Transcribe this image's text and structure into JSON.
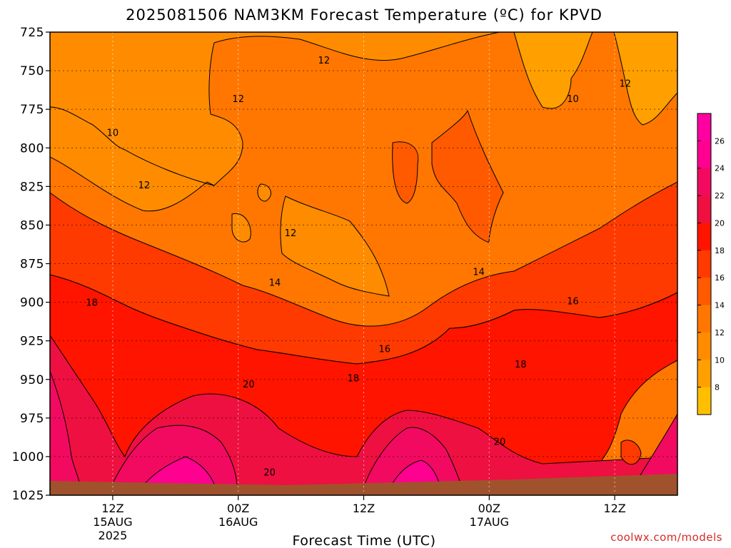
{
  "chart_data": {
    "type": "heatmap",
    "title": "2025081506 NAM3KM Forecast Temperature (ºC) for KPVD",
    "xlabel": "Forecast Time (UTC)",
    "ylabel": "",
    "y_axis_values": [
      725,
      750,
      775,
      800,
      825,
      850,
      875,
      900,
      925,
      950,
      975,
      1000,
      1025
    ],
    "y_tick_labels": [
      "725",
      "750",
      "775",
      "800",
      "825",
      "850",
      "875",
      "900",
      "925",
      "950",
      "975",
      "1000",
      "1025"
    ],
    "y_scale": "pressure (inverted, log-like)",
    "x_range": [
      0,
      60
    ],
    "x_ticks": [
      {
        "x": 6,
        "line1": "12Z",
        "line2": "15AUG",
        "line3": "2025"
      },
      {
        "x": 18,
        "line1": "00Z",
        "line2": "16AUG",
        "line3": ""
      },
      {
        "x": 30,
        "line1": "12Z",
        "line2": "",
        "line3": ""
      },
      {
        "x": 42,
        "line1": "00Z",
        "line2": "17AUG",
        "line3": ""
      },
      {
        "x": 54,
        "line1": "12Z",
        "line2": "",
        "line3": ""
      }
    ],
    "colorbar": {
      "labels": [
        "8",
        "10",
        "12",
        "14",
        "16",
        "18",
        "20",
        "22",
        "24",
        "26"
      ],
      "colors": [
        "#ffbf00",
        "#ff9f00",
        "#ff8c00",
        "#ff7700",
        "#ff5a00",
        "#ff3a00",
        "#ff1400",
        "#ee1040",
        "#f20a60",
        "#ff0090",
        "#ff00a0"
      ]
    },
    "ground_color": "#a0522d",
    "contour_labels": [
      {
        "text": "12",
        "x": 26.2,
        "p": 743
      },
      {
        "text": "12",
        "x": 18.0,
        "p": 768
      },
      {
        "text": "10",
        "x": 6.0,
        "p": 790
      },
      {
        "text": "12",
        "x": 9.0,
        "p": 824
      },
      {
        "text": "12",
        "x": 23.0,
        "p": 855
      },
      {
        "text": "14",
        "x": 21.5,
        "p": 887
      },
      {
        "text": "18",
        "x": 4.0,
        "p": 900
      },
      {
        "text": "16",
        "x": 32.0,
        "p": 930
      },
      {
        "text": "18",
        "x": 29.0,
        "p": 949
      },
      {
        "text": "20",
        "x": 19.0,
        "p": 953
      },
      {
        "text": "20",
        "x": 21.0,
        "p": 1010
      },
      {
        "text": "14",
        "x": 41.0,
        "p": 880
      },
      {
        "text": "16",
        "x": 50.0,
        "p": 899
      },
      {
        "text": "18",
        "x": 45.0,
        "p": 940
      },
      {
        "text": "20",
        "x": 43.0,
        "p": 990
      },
      {
        "text": "10",
        "x": 50.0,
        "p": 768
      },
      {
        "text": "12",
        "x": 55.0,
        "p": 758
      }
    ],
    "grid": true
  },
  "credit": "coolwx.com/models"
}
